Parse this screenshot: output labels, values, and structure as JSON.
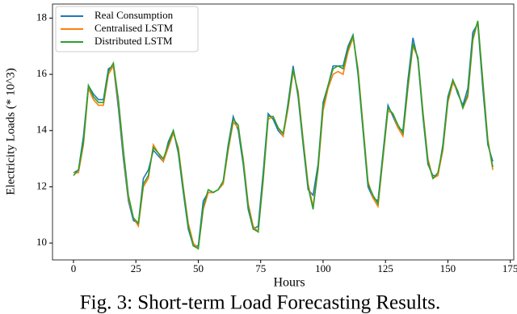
{
  "chart_data": {
    "type": "line",
    "caption": "Fig. 3: Short-term Load Forecasting Results.",
    "xlabel": "Hours",
    "ylabel": "Electricity Loads (* 10^3)",
    "x": [
      0,
      2,
      4,
      6,
      8,
      10,
      12,
      14,
      16,
      18,
      20,
      22,
      24,
      26,
      28,
      30,
      32,
      34,
      36,
      38,
      40,
      42,
      44,
      46,
      48,
      50,
      52,
      54,
      56,
      58,
      60,
      62,
      64,
      66,
      68,
      70,
      72,
      74,
      76,
      78,
      80,
      82,
      84,
      86,
      88,
      90,
      92,
      94,
      96,
      98,
      100,
      102,
      104,
      106,
      108,
      110,
      112,
      114,
      116,
      118,
      120,
      122,
      124,
      126,
      128,
      130,
      132,
      134,
      136,
      138,
      140,
      142,
      144,
      146,
      148,
      150,
      152,
      154,
      156,
      158,
      160,
      162,
      164,
      166,
      168
    ],
    "series": [
      {
        "name": "Real Consumption",
        "color": "#1f77b4",
        "values": [
          12.5,
          12.6,
          13.8,
          15.6,
          15.3,
          15.1,
          15.1,
          16.2,
          16.3,
          14.8,
          13.0,
          11.5,
          10.8,
          10.7,
          12.3,
          12.6,
          13.3,
          13.1,
          12.9,
          13.6,
          14.0,
          13.2,
          11.8,
          10.5,
          9.9,
          9.9,
          11.5,
          11.8,
          11.8,
          11.9,
          12.2,
          13.5,
          14.5,
          14.0,
          12.8,
          11.2,
          10.5,
          10.6,
          12.5,
          14.6,
          14.4,
          14.0,
          13.8,
          15.0,
          16.3,
          15.2,
          13.5,
          11.9,
          11.7,
          12.8,
          15.0,
          15.6,
          16.3,
          16.3,
          16.3,
          17.0,
          17.4,
          16.0,
          14.0,
          12.0,
          11.6,
          11.5,
          13.2,
          14.9,
          14.5,
          14.1,
          14.0,
          15.8,
          17.3,
          16.5,
          14.5,
          12.8,
          12.4,
          12.4,
          13.5,
          15.2,
          15.8,
          15.3,
          14.9,
          15.5,
          17.5,
          17.8,
          15.5,
          13.5,
          12.9
        ]
      },
      {
        "name": "Centralised LSTM",
        "color": "#ff7f0e",
        "values": [
          12.5,
          12.5,
          13.5,
          15.5,
          15.1,
          14.9,
          14.9,
          16.0,
          16.3,
          15.0,
          13.2,
          11.6,
          10.9,
          10.6,
          12.0,
          12.3,
          13.5,
          13.2,
          12.9,
          13.4,
          13.9,
          13.4,
          12.0,
          10.7,
          10.0,
          9.8,
          11.2,
          11.8,
          11.8,
          11.9,
          12.1,
          13.3,
          14.3,
          14.1,
          13.0,
          11.4,
          10.6,
          10.4,
          12.2,
          14.4,
          14.5,
          14.1,
          13.8,
          14.8,
          16.1,
          15.4,
          13.7,
          12.1,
          11.3,
          12.6,
          14.7,
          15.5,
          16.0,
          16.1,
          16.0,
          16.8,
          17.3,
          16.2,
          14.2,
          12.2,
          11.6,
          11.3,
          13.0,
          14.7,
          14.6,
          14.1,
          13.8,
          15.5,
          17.0,
          16.6,
          14.7,
          13.0,
          12.3,
          12.4,
          13.3,
          15.0,
          15.7,
          15.4,
          14.8,
          15.2,
          17.2,
          17.9,
          15.8,
          13.7,
          12.6
        ]
      },
      {
        "name": "Distributed LSTM",
        "color": "#2ca02c",
        "values": [
          12.4,
          12.6,
          13.6,
          15.6,
          15.2,
          15.0,
          15.0,
          16.1,
          16.4,
          15.1,
          13.3,
          11.7,
          10.9,
          10.7,
          12.1,
          12.4,
          13.4,
          13.2,
          13.0,
          13.5,
          14.0,
          13.3,
          11.9,
          10.6,
          9.9,
          9.8,
          11.3,
          11.9,
          11.8,
          11.9,
          12.2,
          13.4,
          14.4,
          14.2,
          12.9,
          11.3,
          10.5,
          10.4,
          12.3,
          14.5,
          14.5,
          14.1,
          13.9,
          14.9,
          16.2,
          15.3,
          13.6,
          12.0,
          11.2,
          12.7,
          14.9,
          15.6,
          16.2,
          16.3,
          16.2,
          16.9,
          17.4,
          16.1,
          14.1,
          12.1,
          11.7,
          11.4,
          13.1,
          14.8,
          14.6,
          14.2,
          13.9,
          15.6,
          17.1,
          16.6,
          14.6,
          12.9,
          12.3,
          12.5,
          13.4,
          15.1,
          15.8,
          15.4,
          14.8,
          15.3,
          17.3,
          17.9,
          15.7,
          13.6,
          12.7
        ]
      }
    ],
    "xlim": [
      -8.4,
      176.4
    ],
    "xticks": [
      0,
      25,
      50,
      75,
      100,
      125,
      150,
      175
    ],
    "ylim": [
      9.4,
      18.5
    ],
    "yticks": [
      10,
      12,
      14,
      16,
      18
    ],
    "legend": "upper-left",
    "grid": false
  }
}
